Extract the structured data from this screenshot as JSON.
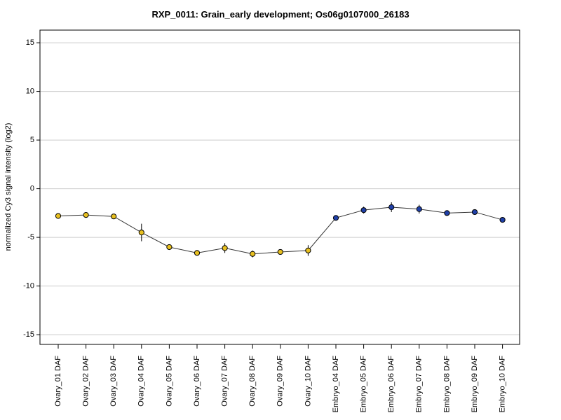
{
  "chart_data": {
    "type": "line",
    "title": "RXP_0011: Grain_early development; Os06g0107000_26183",
    "ylabel": "normalized Cy3 signal intensity (log2)",
    "xlabel": "",
    "ylim": [
      -16,
      16.3
    ],
    "yticks": [
      -15,
      -10,
      -5,
      0,
      5,
      10,
      15
    ],
    "grid": "horizontal",
    "categories": [
      "Ovary_01 DAF",
      "Ovary_02 DAF",
      "Ovary_03 DAF",
      "Ovary_04 DAF",
      "Ovary_05 DAF",
      "Ovary_06 DAF",
      "Ovary_07 DAF",
      "Ovary_08 DAF",
      "Ovary_09 DAF",
      "Ovary_10 DAF",
      "Embryo_04 DAF",
      "Embryo_05 DAF",
      "Embryo_06 DAF",
      "Embryo_07 DAF",
      "Embryo_08 DAF",
      "Embryo_09 DAF",
      "Embryo_10 DAF"
    ],
    "values": [
      -2.8,
      -2.7,
      -2.85,
      -4.5,
      -6.0,
      -6.6,
      -6.1,
      -6.7,
      -6.5,
      -6.35,
      -3.0,
      -2.2,
      -1.9,
      -2.1,
      -2.5,
      -2.4,
      -3.2
    ],
    "errors": [
      0.1,
      0.1,
      0.15,
      0.9,
      0.2,
      0.25,
      0.5,
      0.35,
      0.15,
      0.55,
      0.15,
      0.35,
      0.5,
      0.45,
      0.1,
      0.1,
      0.1
    ],
    "point_colors": [
      "#e8c020",
      "#e8c020",
      "#e8c020",
      "#e8c020",
      "#e8c020",
      "#e8c020",
      "#e8c020",
      "#e8c020",
      "#e8c020",
      "#e8c020",
      "#2040a8",
      "#2040a8",
      "#2040a8",
      "#2040a8",
      "#2040a8",
      "#2040a8",
      "#2040a8"
    ],
    "colors": {
      "ovary": "#e8c020",
      "embryo": "#2040a8",
      "line": "#333333",
      "grid": "#cccccc"
    }
  }
}
